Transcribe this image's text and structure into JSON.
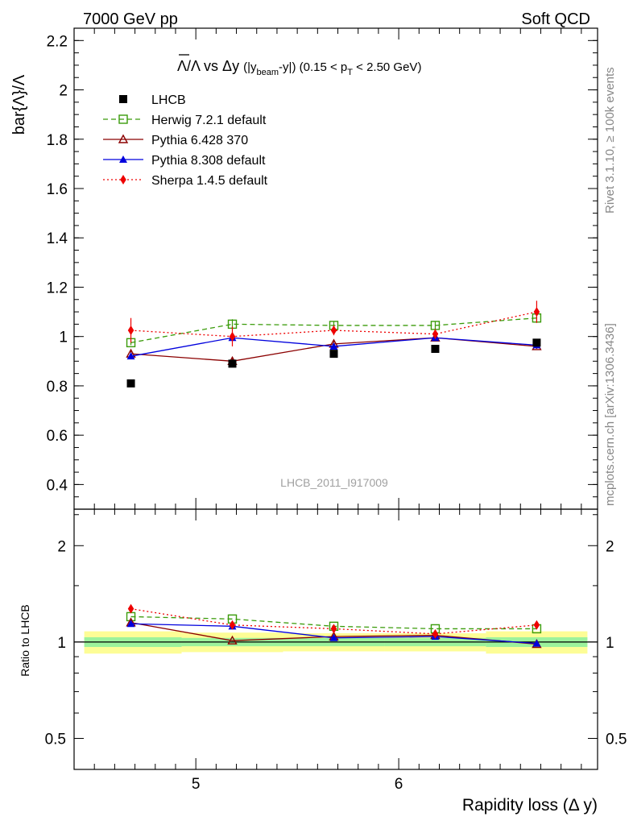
{
  "header": {
    "left_label": "7000 GeV pp",
    "right_label": "Soft QCD"
  },
  "side": {
    "rivet_label": "Rivet 3.1.10, ≥ 100k events",
    "mcplots_label": "mcplots.cern.ch [arXiv:1306.3436]"
  },
  "watermark": "LHCB_2011_I917009",
  "chart_data": {
    "type": "line",
    "title": "Λ̄/Λ vs Δy (|y_beam-y|) (0.15 < p_T < 2.50 GeV)",
    "title_parts": {
      "t1": "Λ/Λ vs Δy",
      "t2": "(|y",
      "t3": "beam",
      "t4": "-y|) (0.15 < p",
      "t5": "T",
      "t6": " < 2.50 GeV)"
    },
    "ylabel": "bar{Λ}/Λ",
    "xlabel": "Rapidity loss (Δ y)",
    "ratio_ylabel": "Ratio to LHCB",
    "xlim": [
      4.4,
      6.98
    ],
    "ylim": [
      0.3,
      2.25
    ],
    "ratio_ylim": [
      0.4,
      2.6
    ],
    "x_ticks": [
      5,
      6
    ],
    "x_tick_labels": [
      "5",
      "6"
    ],
    "y_ticks": [
      0.4,
      0.6,
      0.8,
      1.0,
      1.2,
      1.4,
      1.6,
      1.8,
      2.0,
      2.2
    ],
    "y_tick_labels": [
      "0.4",
      "0.6",
      "0.8",
      "1",
      "1.2",
      "1.4",
      "1.6",
      "1.8",
      "2",
      "2.2"
    ],
    "ratio_ticks": [
      0.5,
      1,
      2
    ],
    "ratio_tick_labels": [
      "0.5",
      "1",
      "2"
    ],
    "x": [
      4.68,
      5.18,
      5.68,
      6.18,
      6.68
    ],
    "band_edges": [
      4.45,
      4.93,
      5.43,
      5.93,
      6.43,
      6.93
    ],
    "reference": {
      "name": "LHCB",
      "values": [
        0.81,
        0.89,
        0.93,
        0.95,
        0.975
      ],
      "stat_rel": [
        0.035,
        0.03,
        0.03,
        0.03,
        0.035
      ],
      "tot_rel": [
        0.08,
        0.07,
        0.065,
        0.065,
        0.08
      ]
    },
    "series": [
      {
        "name": "Herwig 7.2.1 default",
        "color": "#3a9b0a",
        "marker": "open-square",
        "dash": "6,4",
        "values": [
          0.975,
          1.05,
          1.045,
          1.045,
          1.075
        ],
        "errors": [
          0.01,
          0.02,
          0.015,
          0.015,
          0.015
        ]
      },
      {
        "name": "Pythia 6.428 370",
        "color": "#8b0000",
        "marker": "open-triangle",
        "dash": "",
        "values": [
          0.93,
          0.9,
          0.97,
          0.995,
          0.96
        ],
        "errors": [
          0.01,
          0.015,
          0.01,
          0.01,
          0.01
        ]
      },
      {
        "name": "Pythia 8.308 default",
        "color": "#0000dd",
        "marker": "triangle",
        "dash": "",
        "values": [
          0.92,
          0.995,
          0.96,
          0.995,
          0.965
        ],
        "errors": [
          0.01,
          0.01,
          0.01,
          0.01,
          0.01
        ]
      },
      {
        "name": "Sherpa 1.4.5 default",
        "color": "#ee0000",
        "marker": "diamond",
        "dash": "2,3",
        "values": [
          1.025,
          1.0,
          1.025,
          1.01,
          1.1
        ],
        "errors": [
          0.05,
          0.04,
          0.02,
          0.02,
          0.045
        ]
      }
    ],
    "ratio_series": [
      {
        "name": "Herwig 7.2.1 default",
        "values": [
          1.2,
          1.18,
          1.12,
          1.1,
          1.1
        ]
      },
      {
        "name": "Pythia 6.428 370",
        "values": [
          1.15,
          1.01,
          1.04,
          1.05,
          0.985
        ]
      },
      {
        "name": "Pythia 8.308 default",
        "values": [
          1.14,
          1.12,
          1.03,
          1.04,
          0.99
        ]
      },
      {
        "name": "Sherpa 1.4.5 default",
        "values": [
          1.27,
          1.13,
          1.1,
          1.06,
          1.13
        ]
      }
    ]
  }
}
